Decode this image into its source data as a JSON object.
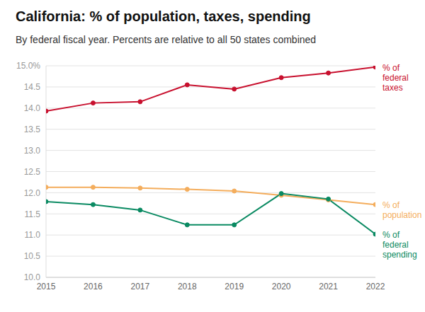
{
  "chart_data": {
    "type": "line",
    "title": "California: % of population, taxes, spending",
    "subtitle": "By federal fiscal year. Percents are relative to all 50 states combined",
    "x": [
      2015,
      2016,
      2017,
      2018,
      2019,
      2020,
      2021,
      2022
    ],
    "xlim": [
      2015,
      2022
    ],
    "xticks": [
      2015,
      2016,
      2017,
      2018,
      2019,
      2020,
      2021,
      2022
    ],
    "ylim": [
      10,
      15
    ],
    "yticks": [
      {
        "value": 10,
        "label": "10.0"
      },
      {
        "value": 10.5,
        "label": "10.5"
      },
      {
        "value": 11,
        "label": "11.0"
      },
      {
        "value": 11.5,
        "label": "11.5"
      },
      {
        "value": 12,
        "label": "12.0"
      },
      {
        "value": 12.5,
        "label": "12.5"
      },
      {
        "value": 13,
        "label": "13.0"
      },
      {
        "value": 13.5,
        "label": "13.5"
      },
      {
        "value": 14,
        "label": "14.0"
      },
      {
        "value": 14.5,
        "label": "14.5"
      },
      {
        "value": 15,
        "label": "15.0%"
      }
    ],
    "grid": true,
    "series": [
      {
        "name": "% of federal taxes",
        "color": "#c8102e",
        "marker": "circle",
        "line_style": "solid",
        "values": [
          13.93,
          14.12,
          14.15,
          14.55,
          14.45,
          14.72,
          14.83,
          14.97
        ]
      },
      {
        "name": "% of population",
        "color": "#f4ad5c",
        "marker": "circle",
        "line_style": "solid",
        "values": [
          12.13,
          12.13,
          12.11,
          12.08,
          12.04,
          11.94,
          11.83,
          11.72
        ]
      },
      {
        "name": "% of federal spending",
        "color": "#0a8a62",
        "marker": "circle",
        "line_style": "solid",
        "values": [
          11.79,
          11.72,
          11.59,
          11.24,
          11.24,
          11.98,
          11.85,
          11.02
        ]
      }
    ]
  }
}
